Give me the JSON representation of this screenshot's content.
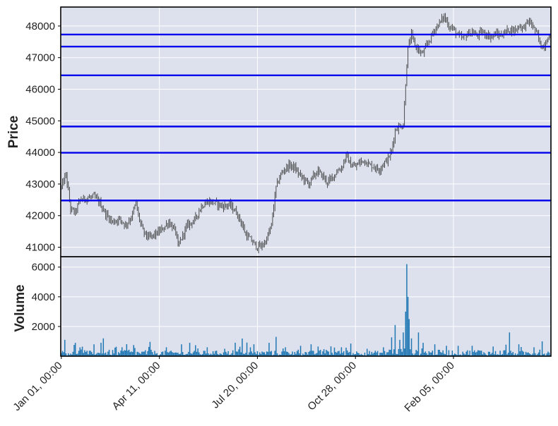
{
  "chart_data": {
    "type": "candlestick_with_volume",
    "colors": {
      "panel_bg": "#dce1ed",
      "grid": "#ffffff",
      "price_line": "#3a3a3a",
      "hline": "#0000ee",
      "volume_bar": "#1f77b4",
      "frame": "#000000"
    },
    "price_panel": {
      "ylabel": "Price",
      "ylim": [
        40700,
        48600
      ],
      "yticks": [
        41000,
        42000,
        43000,
        44000,
        45000,
        46000,
        47000,
        48000
      ],
      "ytick_labels": [
        "41000",
        "42000",
        "43000",
        "44000",
        "45000",
        "46000",
        "47000",
        "48000"
      ],
      "hlines": [
        42480,
        43990,
        44820,
        46440,
        47350,
        47730
      ],
      "price_path": [
        [
          0,
          42900
        ],
        [
          4,
          43300
        ],
        [
          8,
          42200
        ],
        [
          12,
          42100
        ],
        [
          16,
          42500
        ],
        [
          22,
          42550
        ],
        [
          28,
          42600
        ],
        [
          33,
          42400
        ],
        [
          38,
          42050
        ],
        [
          44,
          41800
        ],
        [
          50,
          41900
        ],
        [
          55,
          41700
        ],
        [
          60,
          41950
        ],
        [
          64,
          42400
        ],
        [
          66,
          42000
        ],
        [
          70,
          41500
        ],
        [
          75,
          41300
        ],
        [
          80,
          41400
        ],
        [
          86,
          41550
        ],
        [
          92,
          41800
        ],
        [
          98,
          41500
        ],
        [
          100,
          41000
        ],
        [
          103,
          41300
        ],
        [
          108,
          41700
        ],
        [
          114,
          41850
        ],
        [
          120,
          42300
        ],
        [
          126,
          42450
        ],
        [
          132,
          42400
        ],
        [
          138,
          42300
        ],
        [
          144,
          42350
        ],
        [
          150,
          42100
        ],
        [
          154,
          41800
        ],
        [
          158,
          41400
        ],
        [
          163,
          41200
        ],
        [
          168,
          41000
        ],
        [
          172,
          41050
        ],
        [
          176,
          41250
        ],
        [
          180,
          41700
        ],
        [
          184,
          42900
        ],
        [
          188,
          43300
        ],
        [
          192,
          43500
        ],
        [
          196,
          43600
        ],
        [
          200,
          43500
        ],
        [
          204,
          43300
        ],
        [
          208,
          43150
        ],
        [
          212,
          43000
        ],
        [
          216,
          43250
        ],
        [
          220,
          43400
        ],
        [
          224,
          43250
        ],
        [
          228,
          43050
        ],
        [
          232,
          43200
        ],
        [
          236,
          43400
        ],
        [
          240,
          43500
        ],
        [
          244,
          43900
        ],
        [
          248,
          43600
        ],
        [
          252,
          43550
        ],
        [
          256,
          43700
        ],
        [
          260,
          43750
        ],
        [
          264,
          43600
        ],
        [
          268,
          43550
        ],
        [
          272,
          43450
        ],
        [
          276,
          43650
        ],
        [
          280,
          43800
        ],
        [
          283,
          44050
        ],
        [
          286,
          44700
        ],
        [
          290,
          44850
        ],
        [
          293,
          44850
        ],
        [
          295,
          46200
        ],
        [
          297,
          47300
        ],
        [
          300,
          47700
        ],
        [
          303,
          47400
        ],
        [
          306,
          47250
        ],
        [
          309,
          47100
        ],
        [
          312,
          47300
        ],
        [
          316,
          47600
        ],
        [
          320,
          47900
        ],
        [
          324,
          48100
        ],
        [
          328,
          48300
        ],
        [
          332,
          48000
        ],
        [
          336,
          47900
        ],
        [
          340,
          47700
        ],
        [
          344,
          47600
        ],
        [
          348,
          47750
        ],
        [
          352,
          47800
        ],
        [
          356,
          47700
        ],
        [
          360,
          47800
        ],
        [
          364,
          47750
        ],
        [
          368,
          47650
        ],
        [
          372,
          47750
        ],
        [
          376,
          47700
        ],
        [
          380,
          47800
        ],
        [
          384,
          47900
        ],
        [
          388,
          47850
        ],
        [
          392,
          48000
        ],
        [
          396,
          47950
        ],
        [
          400,
          48150
        ],
        [
          404,
          48000
        ],
        [
          408,
          47700
        ],
        [
          411,
          47350
        ],
        [
          414,
          47400
        ],
        [
          417,
          47650
        ]
      ]
    },
    "volume_panel": {
      "ylabel": "Volume",
      "ylim": [
        0,
        6700
      ],
      "yticks": [
        2000,
        4000,
        6000
      ],
      "ytick_labels": [
        "2000",
        "4000",
        "6000"
      ],
      "base_levels": [
        300,
        300,
        350,
        600,
        300,
        300,
        250,
        300,
        350,
        300,
        300,
        400,
        300,
        300,
        300,
        500,
        300,
        300,
        300,
        300,
        300,
        300,
        350,
        300,
        300,
        300,
        300,
        300,
        300,
        400,
        400,
        500,
        300,
        300,
        300,
        300,
        300,
        300,
        300,
        300,
        300,
        300,
        300,
        300,
        350,
        400,
        350,
        300,
        300,
        350,
        300,
        400,
        300,
        300,
        300,
        300,
        600,
        450,
        450,
        400,
        350,
        350,
        350,
        350,
        350,
        350,
        350,
        350,
        350,
        350,
        350,
        400,
        350,
        300,
        300,
        350,
        400,
        300,
        300,
        300,
        300,
        350,
        300,
        300
      ],
      "spikes": [
        [
          3,
          1100
        ],
        [
          12,
          900
        ],
        [
          20,
          400
        ],
        [
          28,
          800
        ],
        [
          34,
          900
        ],
        [
          36,
          1200
        ],
        [
          52,
          600
        ],
        [
          62,
          750
        ],
        [
          72,
          400
        ],
        [
          90,
          600
        ],
        [
          103,
          800
        ],
        [
          110,
          900
        ],
        [
          125,
          600
        ],
        [
          140,
          500
        ],
        [
          165,
          800
        ],
        [
          178,
          900
        ],
        [
          184,
          1300
        ],
        [
          192,
          600
        ],
        [
          205,
          700
        ],
        [
          214,
          800
        ],
        [
          220,
          650
        ],
        [
          240,
          600
        ],
        [
          248,
          850
        ],
        [
          262,
          500
        ],
        [
          276,
          600
        ],
        [
          286,
          2100
        ],
        [
          290,
          1100
        ],
        [
          293,
          1600
        ],
        [
          295,
          3000
        ],
        [
          296,
          6200
        ],
        [
          297,
          4000
        ],
        [
          298,
          2500
        ],
        [
          300,
          1200
        ],
        [
          306,
          1600
        ],
        [
          310,
          900
        ],
        [
          320,
          800
        ],
        [
          330,
          700
        ],
        [
          340,
          700
        ],
        [
          352,
          700
        ],
        [
          370,
          650
        ],
        [
          384,
          1600
        ],
        [
          392,
          800
        ],
        [
          405,
          600
        ],
        [
          412,
          1000
        ]
      ]
    },
    "x_axis": {
      "n_bars": 420,
      "tick_positions": [
        0,
        84,
        168,
        252,
        336
      ],
      "tick_labels": [
        "Jan 01, 00:00",
        "Apr 11, 00:00",
        "Jul 20, 00:00",
        "Oct 28, 00:00",
        "Feb 05, 00:00"
      ]
    }
  }
}
